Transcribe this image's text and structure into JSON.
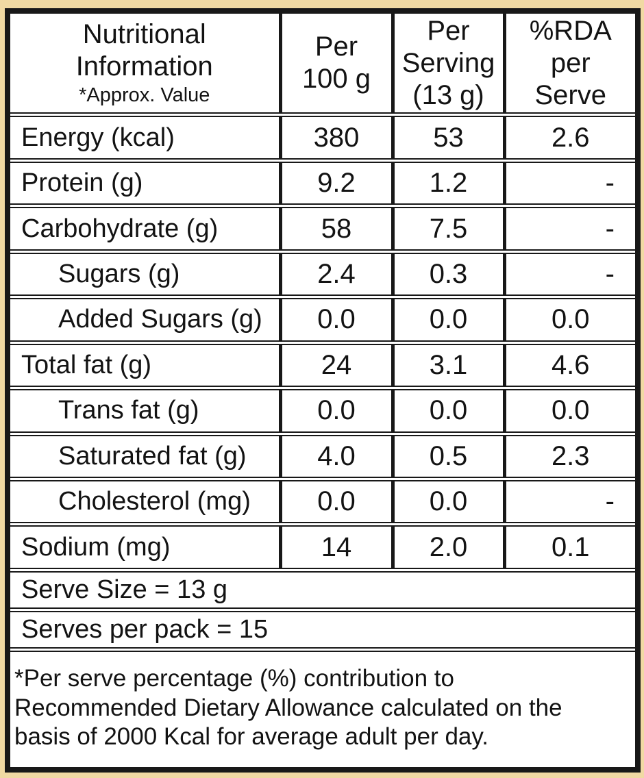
{
  "colors": {
    "frame_background": "#f0d9a3",
    "cell_background": "#ffffff",
    "line_color": "#181818",
    "text_color": "#131313"
  },
  "table": {
    "header": {
      "col1": {
        "line1": "Nutritional",
        "line2": "Information",
        "note": "*Approx. Value"
      },
      "col2": {
        "line1": "Per",
        "line2": "100 g"
      },
      "col3": {
        "line1": "Per",
        "line2": "Serving",
        "line3": "(13 g)"
      },
      "col4": {
        "line1": "%RDA",
        "line2": "per",
        "line3": "Serve"
      }
    },
    "rows": [
      {
        "label": "Energy (kcal)",
        "indent": false,
        "per_100g": "380",
        "per_serving": "53",
        "rda_per_serve": "2.6"
      },
      {
        "label": "Protein (g)",
        "indent": false,
        "per_100g": "9.2",
        "per_serving": "1.2",
        "rda_per_serve": "-"
      },
      {
        "label": "Carbohydrate (g)",
        "indent": false,
        "per_100g": "58",
        "per_serving": "7.5",
        "rda_per_serve": "-"
      },
      {
        "label": "Sugars (g)",
        "indent": true,
        "per_100g": "2.4",
        "per_serving": "0.3",
        "rda_per_serve": "-"
      },
      {
        "label": "Added Sugars (g)",
        "indent": true,
        "per_100g": "0.0",
        "per_serving": "0.0",
        "rda_per_serve": "0.0"
      },
      {
        "label": "Total fat (g)",
        "indent": false,
        "per_100g": "24",
        "per_serving": "3.1",
        "rda_per_serve": "4.6"
      },
      {
        "label": "Trans fat (g)",
        "indent": true,
        "per_100g": "0.0",
        "per_serving": "0.0",
        "rda_per_serve": "0.0"
      },
      {
        "label": "Saturated fat (g)",
        "indent": true,
        "per_100g": "4.0",
        "per_serving": "0.5",
        "rda_per_serve": "2.3"
      },
      {
        "label": "Cholesterol (mg)",
        "indent": true,
        "per_100g": "0.0",
        "per_serving": "0.0",
        "rda_per_serve": "-"
      },
      {
        "label": "Sodium (mg)",
        "indent": false,
        "per_100g": "14",
        "per_serving": "2.0",
        "rda_per_serve": "0.1"
      }
    ],
    "footer": {
      "serve_size": "Serve Size = 13 g",
      "serves_per_pack": "Serves per pack = 15",
      "note_lines": [
        "*Per serve percentage (%) contribution to",
        "Recommended Dietary Allowance calculated on the",
        "basis of 2000 Kcal for average adult per day."
      ]
    }
  }
}
